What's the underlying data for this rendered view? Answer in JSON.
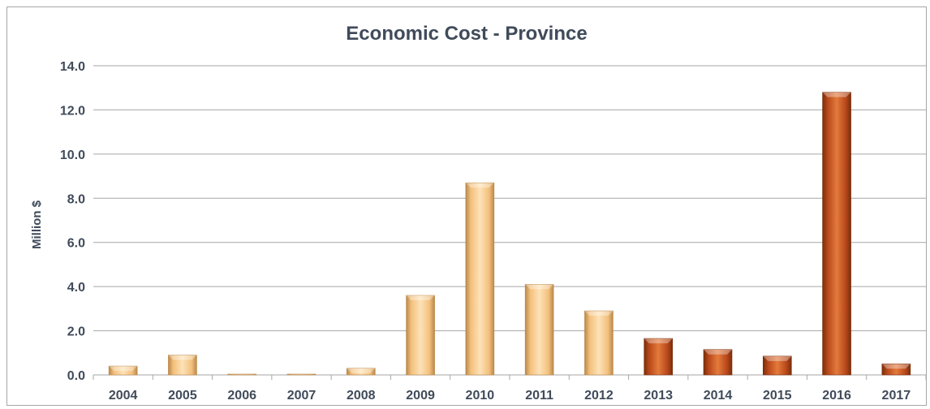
{
  "chart_data": {
    "type": "bar",
    "title": "Economic Cost - Province",
    "xlabel": "",
    "ylabel": "Million $",
    "ylim": [
      0,
      14
    ],
    "yticks": [
      "0.0",
      "2.0",
      "4.0",
      "6.0",
      "8.0",
      "10.0",
      "12.0",
      "14.0"
    ],
    "categories": [
      "2004",
      "2005",
      "2006",
      "2007",
      "2008",
      "2009",
      "2010",
      "2011",
      "2012",
      "2013",
      "2014",
      "2015",
      "2016",
      "2017"
    ],
    "values": [
      0.4,
      0.9,
      0.02,
      0.02,
      0.3,
      3.6,
      8.7,
      4.1,
      2.9,
      1.65,
      1.15,
      0.85,
      12.8,
      0.5
    ],
    "bar_groups": [
      "light",
      "light",
      "light",
      "light",
      "light",
      "light",
      "light",
      "light",
      "light",
      "dark",
      "dark",
      "dark",
      "dark",
      "dark"
    ],
    "colors": {
      "light": "#f7c98a",
      "light_edge": "#b9884a",
      "dark": "#c5531b",
      "dark_edge": "#7a2e0b",
      "grid": "#a6a6a6",
      "text": "#404b5a"
    },
    "grid": true,
    "legend": "none"
  }
}
